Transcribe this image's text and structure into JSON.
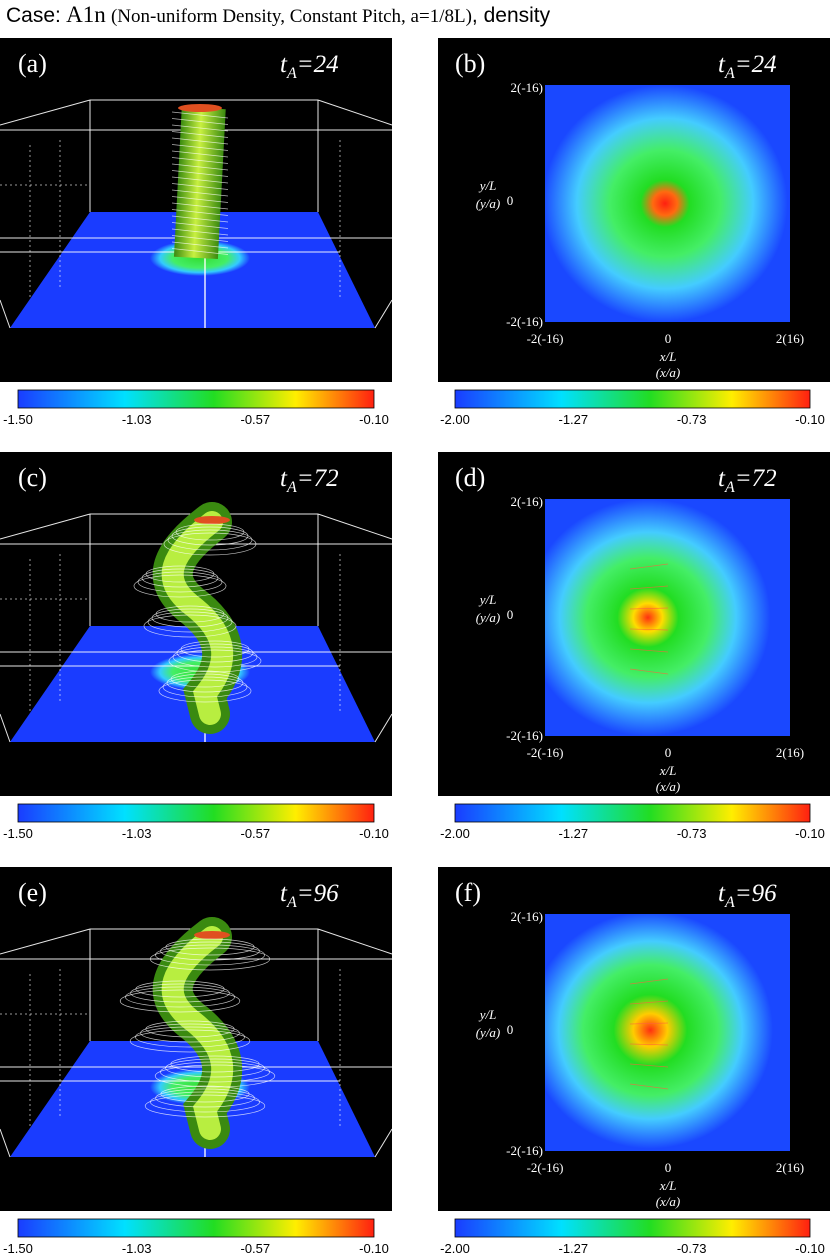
{
  "title": {
    "case": "Case:",
    "id": "A1n",
    "desc": "(Non-uniform Density, Constant Pitch, a=1/8L)",
    "suffix": ", density"
  },
  "time_symbol": "t",
  "time_subscript": "A",
  "colorbar_3d": [
    "-1.50",
    "-1.03",
    "-0.57",
    "-0.10"
  ],
  "colorbar_2d": [
    "-2.00",
    "-1.27",
    "-0.73",
    "-0.10"
  ],
  "axes_2d": {
    "y_top": "2(-16)",
    "y_mid": "0",
    "y_bottom": "-2(-16)",
    "y_label": "y/L",
    "y_label_alt": "(y/a)",
    "x_left": "-2(-16)",
    "x_mid": "0",
    "x_right": "2(16)",
    "x_label": "x/L",
    "x_label_alt": "(x/a)"
  },
  "rows": [
    {
      "left": {
        "label": "(a)",
        "time": "=24"
      },
      "right": {
        "label": "(b)",
        "time": "=24"
      }
    },
    {
      "left": {
        "label": "(c)",
        "time": "=72"
      },
      "right": {
        "label": "(d)",
        "time": "=72"
      }
    },
    {
      "left": {
        "label": "(e)",
        "time": "=96"
      },
      "right": {
        "label": "(f)",
        "time": "=96"
      }
    }
  ]
}
